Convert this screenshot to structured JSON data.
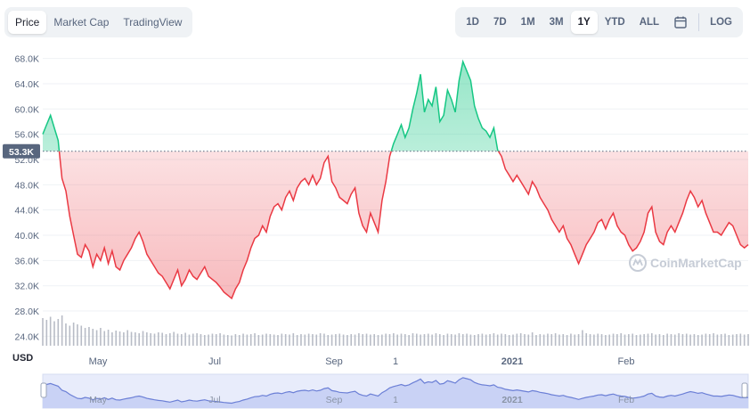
{
  "tabs": {
    "items": [
      "Price",
      "Market Cap",
      "TradingView"
    ],
    "active": 0
  },
  "ranges": {
    "items": [
      "1D",
      "7D",
      "1M",
      "3M",
      "1Y",
      "YTD",
      "ALL"
    ],
    "active": 4,
    "log_label": "LOG"
  },
  "colors": {
    "up": "#16c784",
    "down": "#ea3943",
    "volume": "#b8bcc6",
    "navigator": "#6b7fd6"
  },
  "currency_label": "USD",
  "watermark": "CoinMarketCap",
  "chart_data": {
    "type": "line",
    "baseline": 53300,
    "baseline_label": "53.3K",
    "y_ticks": [
      "24.0K",
      "28.0K",
      "32.0K",
      "36.0K",
      "40.0K",
      "44.0K",
      "48.0K",
      "52.0K",
      "56.0K",
      "60.0K",
      "64.0K",
      "68.0K"
    ],
    "ylim": [
      22500,
      69500
    ],
    "x_labels": [
      "May",
      "Jul",
      "Sep",
      "1",
      "2021",
      "Feb"
    ],
    "navigator_labels": [
      "May",
      "Jul",
      "Sep",
      "1",
      "2021",
      "Feb"
    ],
    "series": [
      {
        "values": [
          56000,
          57500,
          59000,
          57000,
          55000,
          49000,
          47000,
          43000,
          40000,
          37000,
          36500,
          38500,
          37500,
          35000,
          37000,
          36000,
          38000,
          35500,
          37500,
          35000,
          34500,
          36000,
          37000,
          38000,
          39500,
          40500,
          39000,
          37000,
          36000,
          35000,
          34000,
          33500,
          32500,
          31500,
          33000,
          34500,
          32000,
          33000,
          34500,
          33500,
          33000,
          34000,
          35000,
          33500,
          33000,
          32500,
          31800,
          31000,
          30500,
          30000,
          31500,
          32500,
          34500,
          36000,
          38000,
          39500,
          40000,
          41500,
          40500,
          43000,
          44500,
          45000,
          44000,
          46000,
          47000,
          45500,
          47500,
          48500,
          49000,
          48000,
          49500,
          48000,
          49000,
          51500,
          52500,
          48500,
          47500,
          46000,
          45500,
          45000,
          46500,
          47500,
          43500,
          41500,
          40500,
          43500,
          42000,
          40500,
          45500,
          48500,
          52500,
          54500,
          56000,
          57500,
          55500,
          57000,
          60000,
          62500,
          65500,
          59500,
          61500,
          60500,
          63500,
          58000,
          59000,
          63000,
          61500,
          59500,
          64500,
          67500,
          66000,
          64500,
          60500,
          58500,
          57000,
          56500,
          55500,
          57000,
          53500,
          52500,
          50500,
          49500,
          48500,
          49500,
          48500,
          47500,
          46500,
          48500,
          47500,
          46000,
          45000,
          44000,
          42500,
          41500,
          40500,
          41500,
          39500,
          38500,
          37000,
          35500,
          37000,
          38500,
          39500,
          40500,
          42000,
          42500,
          41000,
          42500,
          43500,
          41500,
          40500,
          40000,
          38500,
          37500,
          38000,
          39000,
          40500,
          43500,
          44500,
          40500,
          39000,
          38500,
          40500,
          41500,
          40500,
          42000,
          43500,
          45500,
          47000,
          46000,
          44500,
          45500,
          43500,
          42000,
          40500,
          40500,
          40000,
          41000,
          42000,
          41500,
          40000,
          38500,
          38000,
          38500
        ]
      }
    ],
    "volume": [
      62,
      58,
      65,
      55,
      60,
      68,
      50,
      45,
      52,
      48,
      45,
      40,
      42,
      38,
      35,
      40,
      33,
      36,
      30,
      34,
      32,
      30,
      35,
      31,
      30,
      28,
      33,
      30,
      28,
      27,
      30,
      29,
      26,
      28,
      31,
      27,
      26,
      29,
      25,
      27,
      28,
      26,
      24,
      25,
      27,
      26,
      28,
      25,
      24,
      23,
      26,
      24,
      27,
      25,
      26,
      28,
      24,
      25,
      27,
      26,
      25,
      24,
      27,
      26,
      25,
      28,
      24,
      26,
      25,
      27,
      26,
      25,
      28,
      27,
      24,
      25,
      26,
      27,
      25,
      24,
      26,
      25,
      28,
      26,
      27,
      25,
      26,
      24,
      25,
      27,
      26,
      28,
      25,
      27,
      26,
      24,
      28,
      27,
      25,
      26,
      27,
      25,
      28,
      26,
      24,
      27,
      26,
      25,
      28,
      26,
      27,
      25,
      24,
      26,
      27,
      25,
      26,
      28,
      25,
      27,
      26,
      24,
      25,
      27,
      28,
      26,
      25,
      30,
      24,
      26,
      25,
      27,
      26,
      28,
      25,
      26,
      24,
      27,
      25,
      26,
      35,
      28,
      26,
      25,
      27,
      26,
      24,
      25,
      27,
      26,
      28,
      25,
      26,
      27,
      24,
      25,
      26,
      27,
      28,
      25,
      26,
      24,
      27,
      26,
      25,
      28,
      26,
      27,
      25,
      26,
      24,
      25,
      27,
      26,
      28,
      25,
      26,
      27,
      24,
      25,
      26,
      27,
      25,
      26
    ]
  }
}
